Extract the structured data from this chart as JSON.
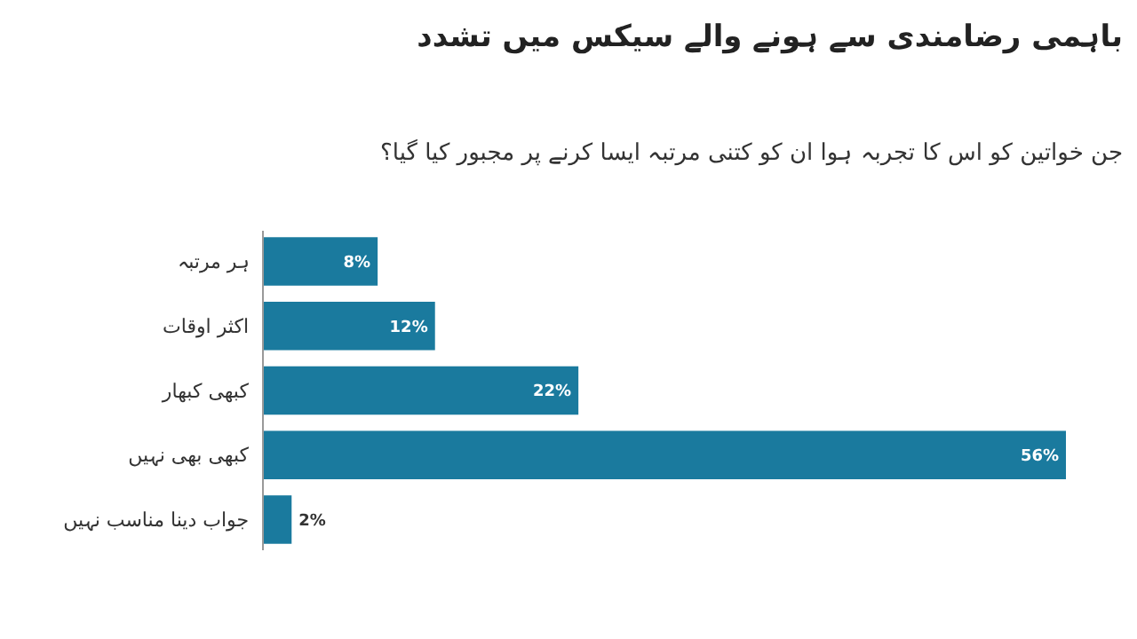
{
  "chart_data": {
    "type": "bar",
    "orientation": "horizontal",
    "title": "باہمی رضامندی سے ہونے والے سیکس میں تشدد",
    "subtitle": "جن خواتین کو اس کا تجربہ ہوا ان کو کتنی مرتبہ ایسا کرنے پر مجبور کیا گیا؟",
    "categories": [
      "ہر مرتبہ",
      "اکثر اوقات",
      "کبھی کبھار",
      "کبھی بھی نہیں",
      "جواب دینا مناسب نہیں"
    ],
    "values": [
      8,
      12,
      22,
      56,
      2
    ],
    "value_labels": [
      "8%",
      "12%",
      "22%",
      "56%",
      "2%"
    ],
    "color": "#1a7a9e",
    "xlim": [
      0,
      56
    ]
  }
}
